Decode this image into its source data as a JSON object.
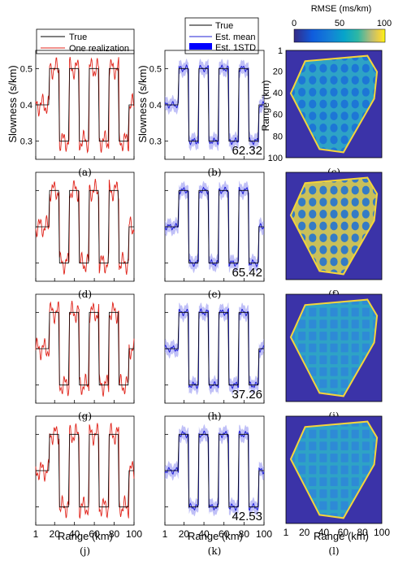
{
  "figure": {
    "y_axis_label": "Slowness (s/km)",
    "x_axis_label": "Range (km)",
    "y_ticks": [
      "0.3",
      "0.4",
      "0.5"
    ],
    "x_ticks": [
      "1",
      "20",
      "40",
      "60",
      "80",
      "100"
    ],
    "map_y_label": "Range (km)",
    "map_y_ticks": [
      "1",
      "20",
      "40",
      "60",
      "80",
      "100"
    ],
    "legend_left": {
      "true": "True",
      "realization": "One realization"
    },
    "legend_mid": {
      "true": "True",
      "mean": "Est. mean",
      "std": "Est. 1STD"
    },
    "colorbar": {
      "title": "RMSE (ms/km)",
      "ticks": [
        "0",
        "50",
        "100"
      ]
    },
    "colors": {
      "true_line": "#000000",
      "realization": "#e0241b",
      "mean": "#1f1fd6",
      "std_band": "#8c8cf0",
      "map_background": "#3b33a8"
    }
  },
  "rows": [
    {
      "labels": [
        "(a)",
        "(b)",
        "(c)"
      ],
      "rmse": "62.32"
    },
    {
      "labels": [
        "(d)",
        "(e)",
        "(f)"
      ],
      "rmse": "65.42"
    },
    {
      "labels": [
        "(g)",
        "(h)",
        "(i)"
      ],
      "rmse": "37.26"
    },
    {
      "labels": [
        "(j)",
        "(k)",
        "(l)"
      ],
      "rmse": "42.53"
    }
  ],
  "chart_data": [
    {
      "type": "line",
      "x": [
        1,
        14,
        15,
        24,
        25,
        34,
        35,
        44,
        45,
        54,
        55,
        64,
        65,
        74,
        75,
        84,
        85,
        94,
        95,
        100
      ],
      "series": [
        {
          "name": "True",
          "values": [
            0.4,
            0.4,
            0.5,
            0.5,
            0.3,
            0.3,
            0.5,
            0.5,
            0.3,
            0.3,
            0.5,
            0.5,
            0.3,
            0.3,
            0.5,
            0.5,
            0.3,
            0.3,
            0.4,
            0.4
          ]
        }
      ],
      "xlim": [
        1,
        100
      ],
      "ylim": [
        0.25,
        0.55
      ],
      "xlabel": "Range (km)",
      "ylabel": "Slowness (s/km)"
    },
    {
      "type": "heatmap",
      "title": "RMSE (ms/km)",
      "value_range": [
        0,
        100
      ],
      "ylabel": "Range (km)"
    }
  ]
}
